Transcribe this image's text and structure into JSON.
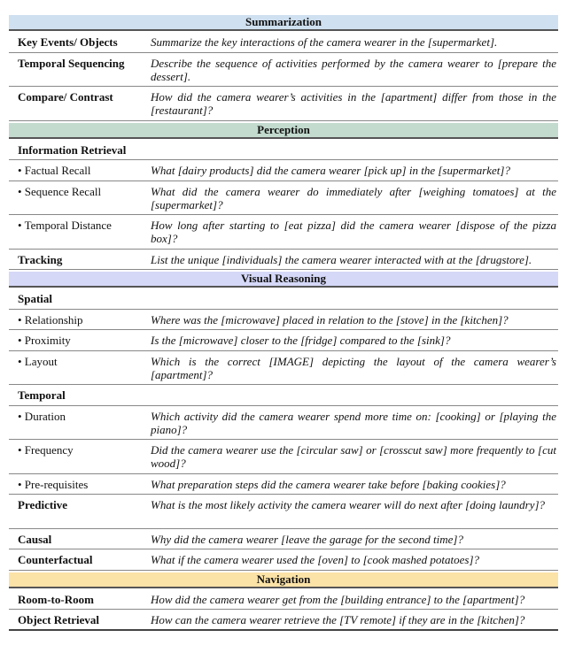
{
  "colors": {
    "summarization": "#cfe0f0",
    "perception": "#c3dbcf",
    "visual_reasoning": "#d5d8f7",
    "navigation": "#fbe2a6"
  },
  "sections": [
    {
      "title": "Summarization",
      "color_key": "summarization",
      "rows": [
        {
          "label": "Key Events/ Objects",
          "bold": true,
          "text": "Summarize the key interactions of the camera wearer in the [supermarket].",
          "lines": 1
        },
        {
          "label": "Temporal Sequencing",
          "bold": true,
          "text": "Describe the sequence of activities performed by the camera wearer to [prepare the dessert].",
          "lines": 2
        },
        {
          "label": "Compare/ Contrast",
          "bold": true,
          "text": "How did the camera wearer’s activities in the [apartment] differ from those in the [restaurant]?",
          "lines": 2
        }
      ]
    },
    {
      "title": "Perception",
      "color_key": "perception",
      "rows": [
        {
          "label": "Information Retrieval",
          "bold": true,
          "text": "",
          "lines": 1
        },
        {
          "label": "• Factual Recall",
          "bold": false,
          "text": "What [dairy products] did the camera wearer [pick up] in the [supermarket]?",
          "lines": 1
        },
        {
          "label": "• Sequence Recall",
          "bold": false,
          "text": "What did the camera wearer do immediately after [weighing tomatoes] at the [supermarket]?",
          "lines": 2
        },
        {
          "label": "• Temporal Distance",
          "bold": false,
          "text": "How long after starting to [eat pizza] did the camera wearer [dispose of the pizza box]?",
          "lines": 2
        },
        {
          "label": "Tracking",
          "bold": true,
          "text": "List the unique [individuals] the camera wearer interacted with at the [drugstore].",
          "lines": 1
        }
      ]
    },
    {
      "title": "Visual Reasoning",
      "color_key": "visual_reasoning",
      "rows": [
        {
          "label": "Spatial",
          "bold": true,
          "text": "",
          "lines": 1
        },
        {
          "label": "• Relationship",
          "bold": false,
          "text": "Where was the [microwave] placed in relation to the [stove] in the [kitchen]?",
          "lines": 1
        },
        {
          "label": "• Proximity",
          "bold": false,
          "text": "Is the [microwave] closer to the [fridge] compared to the [sink]?",
          "lines": 1
        },
        {
          "label": "• Layout",
          "bold": false,
          "text": "Which is the correct [IMAGE] depicting the layout of the camera wearer’s [apartment]?",
          "lines": 2
        },
        {
          "label": "Temporal",
          "bold": true,
          "text": "",
          "lines": 1
        },
        {
          "label": "• Duration",
          "bold": false,
          "text": "Which activity did the camera wearer spend more time on: [cooking] or [playing the piano]?",
          "lines": 2
        },
        {
          "label": "• Frequency",
          "bold": false,
          "text": "Did the camera wearer use the [circular saw] or [crosscut saw] more frequently to [cut wood]?",
          "lines": 2
        },
        {
          "label": "• Pre-requisites",
          "bold": false,
          "text": "What preparation steps did the camera wearer take before [baking cookies]?",
          "lines": 1
        },
        {
          "label": "Predictive",
          "bold": true,
          "text": "What is the most likely activity the camera wearer will do next after [doing laundry]?",
          "lines": 2
        },
        {
          "label": "Causal",
          "bold": true,
          "text": "Why did the camera wearer [leave the garage for the second time]?",
          "lines": 1
        },
        {
          "label": "Counterfactual",
          "bold": true,
          "text": "What if the camera wearer used the [oven] to [cook mashed potatoes]?",
          "lines": 1
        }
      ]
    },
    {
      "title": "Navigation",
      "color_key": "navigation",
      "rows": [
        {
          "label": "Room-to-Room",
          "bold": true,
          "text": "How did the camera wearer get from the [building entrance] to the [apartment]?",
          "lines": 1
        },
        {
          "label": "Object Retrieval",
          "bold": true,
          "text": "How can the camera wearer retrieve the [TV remote] if they are in the [kitchen]?",
          "lines": 1
        }
      ]
    }
  ]
}
